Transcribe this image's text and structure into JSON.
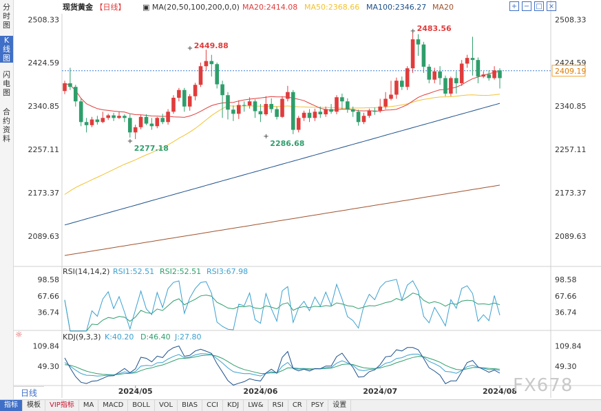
{
  "side_tabs": [
    {
      "label": "分时图",
      "active": false
    },
    {
      "label": "K线图",
      "active": true
    },
    {
      "label": "闪电图",
      "active": false
    },
    {
      "label": "合约资料",
      "active": false
    }
  ],
  "legend": {
    "symbol": "现货黄金",
    "period": "【日线】",
    "ma_setting": "MA(20,50,100,200,0,0)",
    "ma20_text": "MA20:2414.08",
    "ma50_text": "MA50:2368.66",
    "ma100_text": "MA100:2346.27",
    "ma200_text": "MA20",
    "ma20_color": "#e03c3c",
    "ma50_color": "#f2c230",
    "ma100_color": "#1b4f8a",
    "ma200_color": "#a0522d"
  },
  "rsi_legend": {
    "title": "RSI(14,14,2)",
    "rsi1_text": "RSI1:52.51",
    "rsi2_text": "RSI2:52.51",
    "rsi3_text": "RSI3:67.98"
  },
  "kdj_legend": {
    "title": "KDJ(9,3,3)",
    "k_text": "K:40.20",
    "d_text": "D:46.40",
    "j_text": "J:27.80"
  },
  "bottom_bar": {
    "period_button": "日线",
    "items": [
      {
        "label": "指标",
        "active": true,
        "vip": false
      },
      {
        "label": "模板",
        "active": false,
        "vip": false
      },
      {
        "label": "VIP指标",
        "active": false,
        "vip": true
      },
      {
        "label": "MA",
        "active": false,
        "vip": false
      },
      {
        "label": "MACD",
        "active": false,
        "vip": false
      },
      {
        "label": "BOLL",
        "active": false,
        "vip": false
      },
      {
        "label": "VOL",
        "active": false,
        "vip": false
      },
      {
        "label": "BIAS",
        "active": false,
        "vip": false
      },
      {
        "label": "CCI",
        "active": false,
        "vip": false
      },
      {
        "label": "KDJ",
        "active": false,
        "vip": false
      },
      {
        "label": "LW&",
        "active": false,
        "vip": false
      },
      {
        "label": "RSI",
        "active": false,
        "vip": false
      },
      {
        "label": "CR",
        "active": false,
        "vip": false
      },
      {
        "label": "PSY",
        "active": false,
        "vip": false
      },
      {
        "label": "设置",
        "active": false,
        "vip": false
      }
    ]
  },
  "top_icons": [
    "zoom-in-icon",
    "zoom-out-icon",
    "fullscreen-icon",
    "close-icon"
  ],
  "watermark": "FX678",
  "chart_data": {
    "type": "candlestick",
    "y_ticks": [
      2508.33,
      2424.59,
      2340.85,
      2257.11,
      2173.37,
      2089.63
    ],
    "ylim": [
      2033.5,
      2519.4
    ],
    "x_ticks": [
      {
        "label": "2024/05",
        "index": 13
      },
      {
        "label": "2024/06",
        "index": 36
      },
      {
        "label": "2024/07",
        "index": 58
      },
      {
        "label": "2024/08",
        "index": 80
      }
    ],
    "current_price": 2409.19,
    "price_colors": {
      "up": "#e03c3c",
      "down": "#2e9e6b"
    },
    "annotations": [
      {
        "text": "2449.88",
        "index": 23,
        "value": 2449.88,
        "side": "high"
      },
      {
        "text": "2277.18",
        "index": 12,
        "value": 2277.18,
        "side": "low"
      },
      {
        "text": "2286.68",
        "index": 37,
        "value": 2286.68,
        "side": "low"
      },
      {
        "text": "2483.56",
        "index": 64,
        "value": 2483.56,
        "side": "high"
      }
    ],
    "candles": [
      [
        2370,
        2385,
        2390,
        2364
      ],
      [
        2385,
        2378,
        2415,
        2372
      ],
      [
        2378,
        2350,
        2382,
        2340
      ],
      [
        2350,
        2310,
        2355,
        2302
      ],
      [
        2310,
        2304,
        2318,
        2290
      ],
      [
        2304,
        2315,
        2320,
        2300
      ],
      [
        2315,
        2310,
        2322,
        2305
      ],
      [
        2310,
        2318,
        2330,
        2308
      ],
      [
        2318,
        2323,
        2326,
        2314
      ],
      [
        2323,
        2318,
        2328,
        2312
      ],
      [
        2318,
        2322,
        2330,
        2316
      ],
      [
        2322,
        2318,
        2325,
        2310
      ],
      [
        2318,
        2290,
        2325,
        2280
      ],
      [
        2290,
        2300,
        2305,
        2277
      ],
      [
        2300,
        2320,
        2324,
        2296
      ],
      [
        2320,
        2307,
        2325,
        2304
      ],
      [
        2307,
        2302,
        2318,
        2295
      ],
      [
        2302,
        2318,
        2320,
        2298
      ],
      [
        2318,
        2310,
        2326,
        2306
      ],
      [
        2310,
        2330,
        2335,
        2305
      ],
      [
        2330,
        2357,
        2362,
        2326
      ],
      [
        2357,
        2372,
        2376,
        2350
      ],
      [
        2372,
        2340,
        2376,
        2330
      ],
      [
        2340,
        2360,
        2364,
        2332
      ],
      [
        2360,
        2382,
        2386,
        2352
      ],
      [
        2382,
        2418,
        2425,
        2378
      ],
      [
        2418,
        2428,
        2449.88,
        2410
      ],
      [
        2428,
        2422,
        2440,
        2398
      ],
      [
        2422,
        2383,
        2425,
        2375
      ],
      [
        2383,
        2362,
        2390,
        2318
      ],
      [
        2362,
        2334,
        2368,
        2315
      ],
      [
        2334,
        2326,
        2342,
        2312
      ],
      [
        2326,
        2343,
        2352,
        2316
      ],
      [
        2343,
        2342,
        2350,
        2330
      ],
      [
        2342,
        2350,
        2358,
        2336
      ],
      [
        2350,
        2331,
        2354,
        2318
      ],
      [
        2331,
        2325,
        2345,
        2310
      ],
      [
        2325,
        2345,
        2360,
        2322
      ],
      [
        2345,
        2335,
        2356,
        2328
      ],
      [
        2335,
        2320,
        2340,
        2315
      ],
      [
        2320,
        2355,
        2360,
        2318
      ],
      [
        2355,
        2368,
        2380,
        2350
      ],
      [
        2368,
        2295,
        2372,
        2286.68
      ],
      [
        2295,
        2318,
        2322,
        2290
      ],
      [
        2318,
        2328,
        2332,
        2312
      ],
      [
        2328,
        2318,
        2335,
        2310
      ],
      [
        2318,
        2330,
        2336,
        2312
      ],
      [
        2330,
        2325,
        2340,
        2318
      ],
      [
        2325,
        2335,
        2340,
        2320
      ],
      [
        2335,
        2330,
        2345,
        2326
      ],
      [
        2330,
        2358,
        2362,
        2325
      ],
      [
        2358,
        2350,
        2365,
        2335
      ],
      [
        2350,
        2335,
        2356,
        2328
      ],
      [
        2335,
        2330,
        2340,
        2320
      ],
      [
        2330,
        2310,
        2334,
        2303
      ],
      [
        2310,
        2322,
        2328,
        2306
      ],
      [
        2322,
        2332,
        2336,
        2318
      ],
      [
        2332,
        2330,
        2338,
        2324
      ],
      [
        2332,
        2340,
        2355,
        2328
      ],
      [
        2340,
        2355,
        2368,
        2335
      ],
      [
        2355,
        2363,
        2390,
        2352
      ],
      [
        2363,
        2390,
        2396,
        2355
      ],
      [
        2390,
        2378,
        2398,
        2372
      ],
      [
        2378,
        2414,
        2418,
        2372
      ],
      [
        2414,
        2470,
        2483.56,
        2405
      ],
      [
        2470,
        2460,
        2480,
        2438
      ],
      [
        2460,
        2417,
        2465,
        2405
      ],
      [
        2417,
        2392,
        2422,
        2385
      ],
      [
        2392,
        2408,
        2415,
        2385
      ],
      [
        2408,
        2395,
        2418,
        2382
      ],
      [
        2395,
        2365,
        2400,
        2360
      ],
      [
        2365,
        2395,
        2398,
        2360
      ],
      [
        2395,
        2385,
        2408,
        2365
      ],
      [
        2385,
        2423,
        2430,
        2380
      ],
      [
        2423,
        2434,
        2440,
        2415
      ],
      [
        2434,
        2430,
        2475,
        2400
      ],
      [
        2430,
        2398,
        2435,
        2385
      ],
      [
        2398,
        2402,
        2408,
        2395
      ],
      [
        2402,
        2395,
        2410,
        2390
      ],
      [
        2395,
        2410,
        2418,
        2392
      ],
      [
        2410,
        2395,
        2414,
        2375
      ]
    ]
  }
}
